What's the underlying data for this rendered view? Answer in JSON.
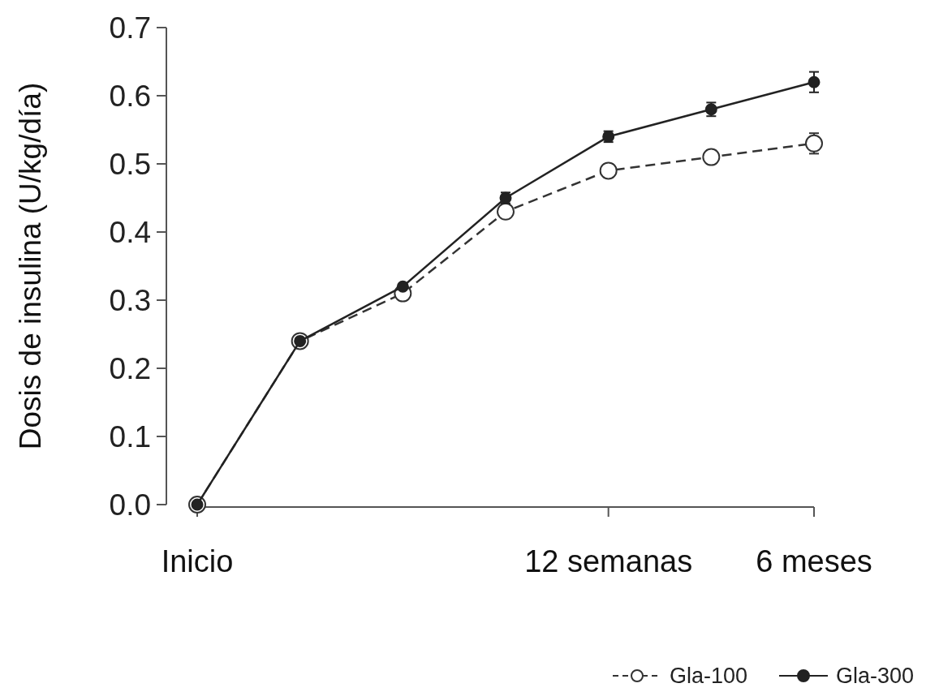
{
  "chart_data": {
    "type": "line",
    "ylabel": "Dosis de insulina (U/kg/día)",
    "categories": [
      "Inicio",
      null,
      null,
      null,
      "12 semanas",
      null,
      "6 meses"
    ],
    "ylim": [
      0,
      0.7
    ],
    "yticks": [
      {
        "value": 0,
        "label": "0.0"
      },
      0.1,
      0.2,
      0.3,
      0.4,
      0.5,
      0.6,
      0.7
    ],
    "marker": "circle",
    "legend": "bottom right",
    "grid": false,
    "series": [
      {
        "name": "Gla-100",
        "color": "#333333",
        "line_style": "dashed",
        "values": [
          0,
          0.24,
          0.31,
          0.43,
          0.49,
          0.51,
          0.53
        ],
        "errors": [
          null,
          null,
          null,
          0.008,
          0.01,
          0.01,
          0.015
        ]
      },
      {
        "name": "Gla-300",
        "color": "#222222",
        "line_style": "solid",
        "values": [
          0,
          0.24,
          0.32,
          0.45,
          0.54,
          0.58,
          0.62
        ],
        "errors": [
          null,
          null,
          null,
          0.008,
          0.008,
          0.01,
          0.015
        ]
      }
    ]
  }
}
